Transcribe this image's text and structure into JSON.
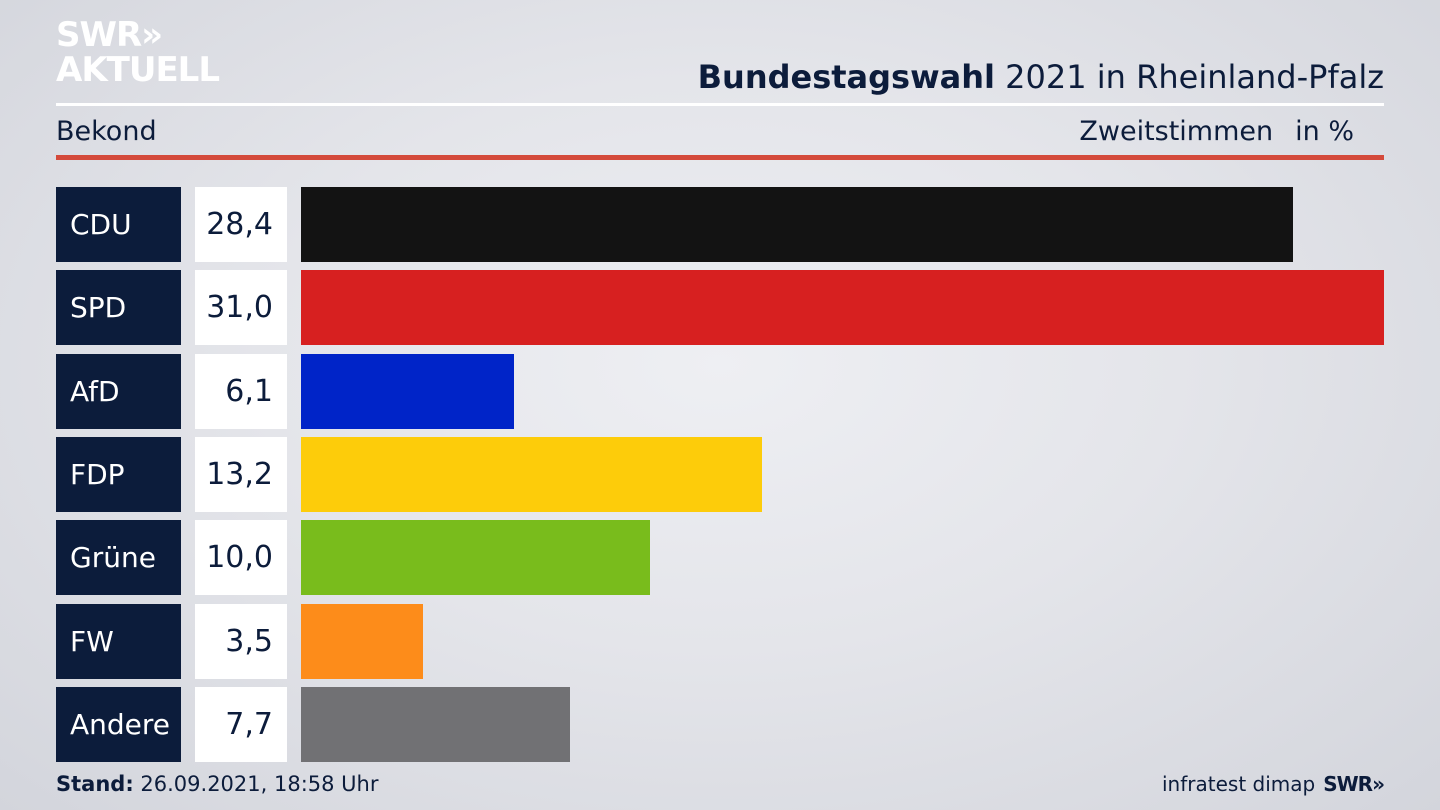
{
  "logo": {
    "line1": "SWR»",
    "line2": "AKTUELL"
  },
  "header": {
    "title_bold": "Bundestagswahl",
    "title_rest": " 2021 in Rheinland-Pfalz",
    "sub_left": "Bekond",
    "sub_right": "Zweitstimmen",
    "unit": "in %"
  },
  "footer": {
    "stand_label": "Stand:",
    "stand_value": " 26.09.2021, 18:58 Uhr",
    "source": "infratest dimap",
    "brand": "SWR»"
  },
  "chart_data": {
    "type": "bar",
    "orientation": "horizontal",
    "categories": [
      "CDU",
      "SPD",
      "AfD",
      "FDP",
      "Grüne",
      "FW",
      "Andere"
    ],
    "values": [
      28.4,
      31.0,
      6.1,
      13.2,
      10.0,
      3.5,
      7.7
    ],
    "value_labels": [
      "28,4",
      "31,0",
      "6,1",
      "13,2",
      "10,0",
      "3,5",
      "7,7"
    ],
    "colors": [
      "#131313",
      "#d72020",
      "#0024c8",
      "#fdcc0a",
      "#79bc1c",
      "#fd8c1a",
      "#717174"
    ],
    "xlim": [
      0,
      31.0
    ],
    "grid": false,
    "legend": "none"
  }
}
